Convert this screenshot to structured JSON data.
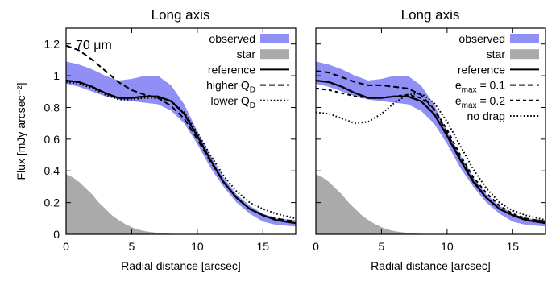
{
  "chart_data": [
    {
      "type": "line",
      "title": "Long axis",
      "xlabel": "Radial distance [arcsec]",
      "ylabel": "Flux [mJy arcsec⁻²]",
      "xlim": [
        0,
        17.5
      ],
      "ylim": [
        0,
        1.3
      ],
      "xticks": [
        0,
        5,
        10,
        15
      ],
      "yticks": [
        0,
        0.2,
        0.4,
        0.6,
        0.8,
        1,
        1.2
      ],
      "ytick_labels": [
        "0",
        "0.2",
        "0.4",
        "0.6",
        "0.8",
        "1",
        "1.2"
      ],
      "annotation": "70 μm",
      "legend_position": "top-right",
      "bands": [
        {
          "name": "observed",
          "color": "#8f8ff5",
          "x": [
            0,
            1,
            2,
            3,
            4,
            5,
            6,
            7,
            8,
            9,
            10,
            11,
            12,
            13,
            14,
            15,
            16,
            17.5
          ],
          "low": [
            0.95,
            0.93,
            0.9,
            0.87,
            0.85,
            0.84,
            0.83,
            0.82,
            0.78,
            0.7,
            0.57,
            0.42,
            0.3,
            0.2,
            0.13,
            0.08,
            0.06,
            0.05
          ],
          "high": [
            1.09,
            1.07,
            1.04,
            1.0,
            0.97,
            0.98,
            1.0,
            1.0,
            0.94,
            0.82,
            0.65,
            0.5,
            0.36,
            0.25,
            0.18,
            0.13,
            0.1,
            0.09
          ]
        },
        {
          "name": "star",
          "color": "#aaaaaa",
          "x": [
            0,
            0.5,
            1,
            1.5,
            2,
            2.5,
            3,
            3.5,
            4,
            4.5,
            5,
            5.5,
            6,
            6.5,
            7,
            7.5,
            8,
            8.5,
            9
          ],
          "low": [
            0,
            0,
            0,
            0,
            0,
            0,
            0,
            0,
            0,
            0,
            0,
            0,
            0,
            0,
            0,
            0,
            0,
            0,
            0
          ],
          "high": [
            0.38,
            0.36,
            0.33,
            0.29,
            0.25,
            0.2,
            0.16,
            0.12,
            0.09,
            0.065,
            0.045,
            0.03,
            0.02,
            0.014,
            0.009,
            0.005,
            0.003,
            0.001,
            0
          ]
        }
      ],
      "series": [
        {
          "name": "reference",
          "style": "solid",
          "x": [
            0,
            1,
            2,
            3,
            4,
            5,
            6,
            7,
            8,
            9,
            10,
            11,
            12,
            13,
            14,
            15,
            16,
            17.5
          ],
          "y": [
            0.97,
            0.96,
            0.93,
            0.89,
            0.86,
            0.86,
            0.87,
            0.87,
            0.84,
            0.76,
            0.62,
            0.47,
            0.33,
            0.23,
            0.16,
            0.12,
            0.09,
            0.07
          ]
        },
        {
          "name": "higher Q",
          "subscript": "D",
          "style": "dashed",
          "x": [
            0,
            1,
            2,
            3,
            4,
            5,
            6,
            7,
            8,
            9,
            10,
            11,
            12,
            13,
            14,
            15,
            16,
            17.5
          ],
          "y": [
            1.19,
            1.16,
            1.1,
            1.03,
            0.96,
            0.91,
            0.88,
            0.86,
            0.81,
            0.73,
            0.6,
            0.46,
            0.33,
            0.23,
            0.16,
            0.12,
            0.1,
            0.08
          ]
        },
        {
          "name": "lower Q",
          "subscript": "D",
          "style": "dotted",
          "x": [
            0,
            1,
            2,
            3,
            4,
            5,
            6,
            7,
            8,
            9,
            10,
            11,
            12,
            13,
            14,
            15,
            16,
            17.5
          ],
          "y": [
            0.96,
            0.95,
            0.92,
            0.88,
            0.85,
            0.85,
            0.86,
            0.86,
            0.84,
            0.77,
            0.64,
            0.5,
            0.37,
            0.27,
            0.2,
            0.16,
            0.13,
            0.1
          ]
        }
      ]
    },
    {
      "type": "line",
      "title": "Long axis",
      "xlabel": "Radial distance [arcsec]",
      "xlim": [
        0,
        17.5
      ],
      "ylim": [
        0,
        1.3
      ],
      "xticks": [
        0,
        5,
        10,
        15
      ],
      "yticks": [
        0,
        0.2,
        0.4,
        0.6,
        0.8,
        1,
        1.2
      ],
      "legend_position": "top-right",
      "bands": [
        {
          "name": "observed",
          "color": "#8f8ff5",
          "x": [
            0,
            1,
            2,
            3,
            4,
            5,
            6,
            7,
            8,
            9,
            10,
            11,
            12,
            13,
            14,
            15,
            16,
            17.5
          ],
          "low": [
            0.95,
            0.93,
            0.9,
            0.87,
            0.85,
            0.84,
            0.83,
            0.82,
            0.78,
            0.7,
            0.57,
            0.42,
            0.3,
            0.2,
            0.13,
            0.08,
            0.06,
            0.05
          ],
          "high": [
            1.09,
            1.07,
            1.04,
            1.0,
            0.97,
            0.98,
            1.0,
            1.0,
            0.94,
            0.82,
            0.65,
            0.5,
            0.36,
            0.25,
            0.18,
            0.13,
            0.1,
            0.09
          ]
        },
        {
          "name": "star",
          "color": "#aaaaaa",
          "x": [
            0,
            0.5,
            1,
            1.5,
            2,
            2.5,
            3,
            3.5,
            4,
            4.5,
            5,
            5.5,
            6,
            6.5,
            7,
            7.5,
            8,
            8.5,
            9
          ],
          "low": [
            0,
            0,
            0,
            0,
            0,
            0,
            0,
            0,
            0,
            0,
            0,
            0,
            0,
            0,
            0,
            0,
            0,
            0,
            0
          ],
          "high": [
            0.38,
            0.36,
            0.33,
            0.29,
            0.25,
            0.2,
            0.16,
            0.12,
            0.09,
            0.065,
            0.045,
            0.03,
            0.02,
            0.014,
            0.009,
            0.005,
            0.003,
            0.001,
            0
          ]
        }
      ],
      "series": [
        {
          "name": "reference",
          "style": "solid",
          "x": [
            0,
            1,
            2,
            3,
            4,
            5,
            6,
            7,
            8,
            9,
            10,
            11,
            12,
            13,
            14,
            15,
            16,
            17.5
          ],
          "y": [
            0.97,
            0.96,
            0.93,
            0.89,
            0.86,
            0.86,
            0.87,
            0.87,
            0.84,
            0.76,
            0.62,
            0.47,
            0.33,
            0.23,
            0.16,
            0.12,
            0.09,
            0.07
          ]
        },
        {
          "name": "e",
          "subscript": "max",
          "suffix": " = 0.1",
          "style": "dashed",
          "x": [
            0,
            1,
            2,
            3,
            4,
            5,
            6,
            7,
            8,
            9,
            10,
            11,
            12,
            13,
            14,
            15,
            16,
            17.5
          ],
          "y": [
            1.03,
            1.02,
            0.99,
            0.96,
            0.94,
            0.94,
            0.93,
            0.92,
            0.88,
            0.79,
            0.64,
            0.48,
            0.34,
            0.23,
            0.16,
            0.12,
            0.1,
            0.08
          ]
        },
        {
          "name": "e",
          "subscript": "max",
          "suffix": " = 0.2",
          "style": "short-dashed",
          "x": [
            0,
            1,
            2,
            3,
            4,
            5,
            6,
            7,
            8,
            9,
            10,
            11,
            12,
            13,
            14,
            15,
            16,
            17.5
          ],
          "y": [
            0.92,
            0.91,
            0.89,
            0.87,
            0.86,
            0.86,
            0.87,
            0.88,
            0.86,
            0.79,
            0.66,
            0.5,
            0.36,
            0.26,
            0.18,
            0.13,
            0.1,
            0.08
          ]
        },
        {
          "name": "no drag",
          "style": "dotted",
          "x": [
            0,
            1,
            2,
            3,
            4,
            5,
            6,
            7,
            8,
            9,
            10,
            11,
            12,
            13,
            14,
            15,
            16,
            17.5
          ],
          "y": [
            0.77,
            0.76,
            0.73,
            0.7,
            0.71,
            0.76,
            0.83,
            0.88,
            0.89,
            0.83,
            0.71,
            0.56,
            0.41,
            0.29,
            0.2,
            0.15,
            0.12,
            0.09
          ]
        }
      ]
    }
  ]
}
